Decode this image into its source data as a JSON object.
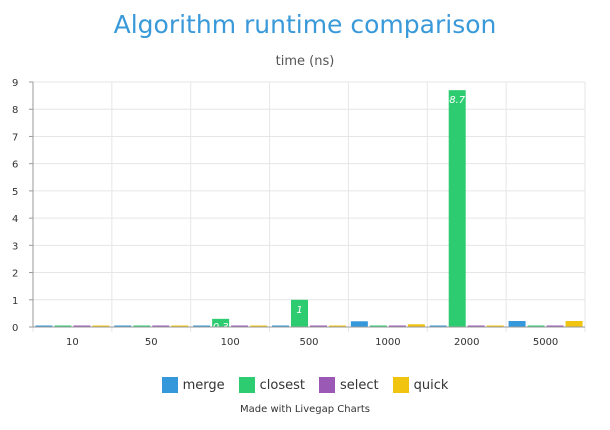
{
  "chart_data": {
    "type": "bar",
    "title": "Algorithm runtime comparison",
    "subtitle": "time (ns)",
    "categories": [
      "10",
      "50",
      "100",
      "500",
      "1000",
      "2000",
      "5000"
    ],
    "series": [
      {
        "name": "merge",
        "color": "#3498db",
        "values": [
          0.01,
          0.01,
          0.02,
          0.03,
          0.21,
          0.03,
          0.22
        ]
      },
      {
        "name": "closest",
        "color": "#2ecc71",
        "values": [
          0.01,
          0.01,
          0.3,
          1,
          0.02,
          8.7,
          0.03
        ]
      },
      {
        "name": "select",
        "color": "#9b59b6",
        "values": [
          0.01,
          0.01,
          0.01,
          0.01,
          0.02,
          0.02,
          0.02
        ]
      },
      {
        "name": "quick",
        "color": "#f1c40f",
        "values": [
          0.01,
          0.01,
          0.02,
          0.03,
          0.1,
          0.03,
          0.22
        ]
      }
    ],
    "data_labels": [
      {
        "series": 1,
        "category": 2,
        "text": "0.3"
      },
      {
        "series": 1,
        "category": 3,
        "text": "1"
      },
      {
        "series": 1,
        "category": 5,
        "text": "8.7"
      }
    ],
    "yticks": [
      "0",
      "1",
      "2",
      "3",
      "4",
      "5",
      "6",
      "7",
      "8",
      "9"
    ],
    "ylim": [
      0,
      9
    ],
    "grid": true,
    "legend_position": "bottom",
    "credit": "Made with Livegap Charts"
  }
}
